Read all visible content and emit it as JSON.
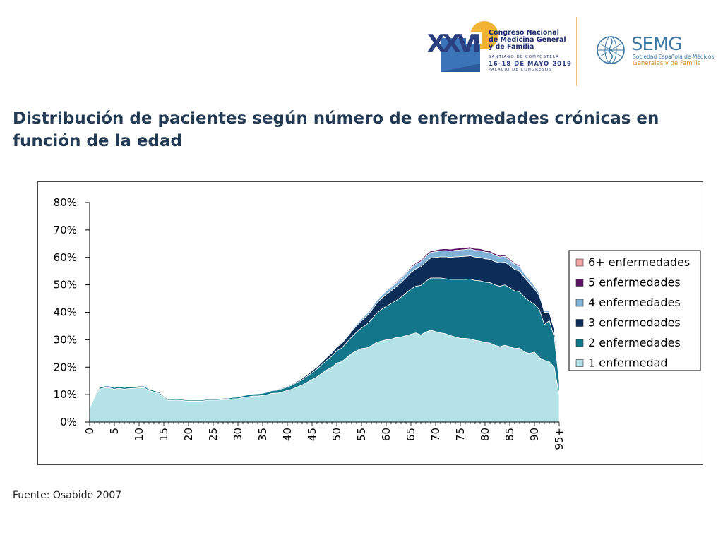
{
  "header": {
    "congress": {
      "numeral": "XXVI",
      "name": "Congreso Nacional\nde Medicina General\ny de Familia",
      "city": "SANTIAGO DE COMPOSTELA",
      "dates": "16-18 DE MAYO 2019",
      "venue": "PALACIO DE CONGRESOS",
      "colors": {
        "navy": "#2b3f80",
        "sun": "#f2b233",
        "blue": "#3b75b8"
      }
    },
    "semg": {
      "name": "SEMG",
      "tagline_1": "Sociedad Española de Médicos",
      "tagline_2": "Generales y de Familia",
      "icon": "semg-globe-icon"
    }
  },
  "title": "Distribución de pacientes según número de enfermedades crónicas en función de la edad",
  "source": "Fuente: Osabide 2007",
  "chart_data": {
    "type": "area",
    "stacked": true,
    "x": [
      0,
      1,
      2,
      3,
      4,
      5,
      6,
      7,
      8,
      9,
      10,
      11,
      12,
      13,
      14,
      15,
      16,
      17,
      18,
      19,
      20,
      21,
      22,
      23,
      24,
      25,
      26,
      27,
      28,
      29,
      30,
      31,
      32,
      33,
      34,
      35,
      36,
      37,
      38,
      39,
      40,
      41,
      42,
      43,
      44,
      45,
      46,
      47,
      48,
      49,
      50,
      51,
      52,
      53,
      54,
      55,
      56,
      57,
      58,
      59,
      60,
      61,
      62,
      63,
      64,
      65,
      66,
      67,
      68,
      69,
      70,
      71,
      72,
      73,
      74,
      75,
      76,
      77,
      78,
      79,
      80,
      81,
      82,
      83,
      84,
      85,
      86,
      87,
      88,
      89,
      90,
      91,
      92,
      93,
      94,
      95
    ],
    "x_ticks": [
      0,
      5,
      10,
      15,
      20,
      25,
      30,
      35,
      40,
      45,
      50,
      55,
      60,
      65,
      70,
      75,
      80,
      85,
      90,
      95
    ],
    "x_tick_labels": [
      "0",
      "5",
      "10",
      "15",
      "20",
      "25",
      "30",
      "35",
      "40",
      "45",
      "50",
      "55",
      "60",
      "65",
      "70",
      "75",
      "80",
      "85",
      "90",
      "95+"
    ],
    "ylim": [
      0,
      80
    ],
    "y_ticks": [
      0,
      10,
      20,
      30,
      40,
      50,
      60,
      70,
      80
    ],
    "y_tick_labels": [
      "0%",
      "10%",
      "20%",
      "30%",
      "40%",
      "50%",
      "60%",
      "70%",
      "80%"
    ],
    "grid": false,
    "legend_position": "right",
    "series": [
      {
        "name": "1 enfermedad",
        "color": "#b5e2e6",
        "values": [
          5.0,
          9.0,
          12.0,
          12.5,
          12.5,
          12.0,
          12.3,
          12.0,
          12.2,
          12.3,
          12.5,
          12.5,
          11.5,
          11.0,
          10.5,
          9.0,
          7.8,
          8.0,
          8.0,
          7.8,
          7.6,
          7.6,
          7.6,
          7.7,
          8.0,
          8.0,
          8.0,
          8.2,
          8.2,
          8.5,
          8.5,
          9.0,
          9.2,
          9.5,
          9.5,
          9.7,
          10.0,
          10.5,
          10.5,
          11.0,
          11.5,
          12.0,
          12.8,
          13.5,
          14.5,
          15.5,
          16.5,
          17.8,
          19.0,
          20.0,
          21.5,
          22.0,
          23.5,
          25.0,
          26.0,
          26.8,
          27.0,
          27.8,
          29.0,
          29.5,
          30.0,
          30.2,
          30.8,
          31.0,
          31.5,
          32.0,
          32.5,
          31.8,
          32.8,
          33.5,
          33.0,
          32.5,
          32.2,
          31.5,
          31.0,
          30.5,
          30.5,
          30.3,
          29.8,
          29.5,
          29.0,
          28.8,
          28.0,
          27.5,
          28.0,
          27.5,
          26.8,
          27.0,
          25.5,
          25.0,
          25.5,
          23.5,
          22.5,
          22.0,
          20.0,
          10.0
        ]
      },
      {
        "name": "2 enfermedades",
        "color": "#13768a",
        "values": [
          0.3,
          0.5,
          0.6,
          0.6,
          0.6,
          0.6,
          0.6,
          0.6,
          0.6,
          0.6,
          0.6,
          0.6,
          0.5,
          0.5,
          0.5,
          0.4,
          0.4,
          0.4,
          0.4,
          0.4,
          0.4,
          0.4,
          0.4,
          0.4,
          0.4,
          0.4,
          0.5,
          0.5,
          0.5,
          0.5,
          0.6,
          0.6,
          0.7,
          0.7,
          0.8,
          0.8,
          0.9,
          1.0,
          1.1,
          1.2,
          1.3,
          1.5,
          1.7,
          1.9,
          2.2,
          2.5,
          2.8,
          3.2,
          3.6,
          4.0,
          4.5,
          5.0,
          5.5,
          6.0,
          6.8,
          7.5,
          8.5,
          9.5,
          10.5,
          11.5,
          12.2,
          13.0,
          13.5,
          14.5,
          15.5,
          16.5,
          17.0,
          18.0,
          18.5,
          19.0,
          19.5,
          20.0,
          20.0,
          20.5,
          21.0,
          21.5,
          21.5,
          21.8,
          21.8,
          22.0,
          22.0,
          22.0,
          22.0,
          22.0,
          22.0,
          21.5,
          21.0,
          20.5,
          20.0,
          19.0,
          17.5,
          17.5,
          13.0,
          15.0,
          11.0,
          5.0
        ]
      },
      {
        "name": "3 enfermedades",
        "color": "#0c2d57",
        "values": [
          0.1,
          0.1,
          0.1,
          0.1,
          0.1,
          0.1,
          0.1,
          0.1,
          0.1,
          0.1,
          0.1,
          0.1,
          0.1,
          0.1,
          0.1,
          0.1,
          0.1,
          0.1,
          0.1,
          0.1,
          0.1,
          0.1,
          0.1,
          0.1,
          0.1,
          0.1,
          0.1,
          0.1,
          0.1,
          0.1,
          0.1,
          0.1,
          0.1,
          0.1,
          0.2,
          0.2,
          0.2,
          0.2,
          0.3,
          0.3,
          0.3,
          0.4,
          0.4,
          0.5,
          0.6,
          0.7,
          0.8,
          0.9,
          1.0,
          1.2,
          1.4,
          1.6,
          1.8,
          2.0,
          2.3,
          2.6,
          3.0,
          3.3,
          3.6,
          4.0,
          4.3,
          4.6,
          5.0,
          5.3,
          5.6,
          6.0,
          6.3,
          6.8,
          7.0,
          7.3,
          7.5,
          7.7,
          8.0,
          8.0,
          8.2,
          8.3,
          8.4,
          8.5,
          8.5,
          8.5,
          8.5,
          8.5,
          8.5,
          8.5,
          8.3,
          8.0,
          7.8,
          7.5,
          7.0,
          6.5,
          5.5,
          5.0,
          4.5,
          3.0,
          2.5,
          1.5
        ]
      },
      {
        "name": "4 enfermedades",
        "color": "#7fb2d6",
        "values": [
          0,
          0,
          0,
          0,
          0,
          0,
          0,
          0,
          0,
          0,
          0,
          0,
          0,
          0,
          0,
          0,
          0,
          0,
          0,
          0,
          0,
          0,
          0,
          0,
          0,
          0,
          0,
          0,
          0,
          0,
          0,
          0,
          0,
          0,
          0,
          0,
          0,
          0,
          0,
          0,
          0,
          0.1,
          0.1,
          0.1,
          0.1,
          0.1,
          0.2,
          0.2,
          0.2,
          0.3,
          0.3,
          0.4,
          0.4,
          0.5,
          0.6,
          0.7,
          0.8,
          0.9,
          1.0,
          1.1,
          1.2,
          1.3,
          1.4,
          1.5,
          1.6,
          1.7,
          1.8,
          1.9,
          2.0,
          2.0,
          2.1,
          2.2,
          2.3,
          2.3,
          2.4,
          2.4,
          2.5,
          2.5,
          2.5,
          2.5,
          2.5,
          2.4,
          2.3,
          2.2,
          2.1,
          2.0,
          1.9,
          1.7,
          1.5,
          1.3,
          1.1,
          0.9,
          0.7,
          0.6,
          0.5,
          0.2
        ]
      },
      {
        "name": "5 enfermedades",
        "color": "#5a1560",
        "values": [
          0,
          0,
          0,
          0,
          0,
          0,
          0,
          0,
          0,
          0,
          0,
          0,
          0,
          0,
          0,
          0,
          0,
          0,
          0,
          0,
          0,
          0,
          0,
          0,
          0,
          0,
          0,
          0,
          0,
          0,
          0,
          0,
          0,
          0,
          0,
          0,
          0,
          0,
          0,
          0,
          0,
          0,
          0,
          0,
          0,
          0,
          0,
          0,
          0,
          0.05,
          0.05,
          0.1,
          0.1,
          0.1,
          0.1,
          0.15,
          0.2,
          0.2,
          0.25,
          0.3,
          0.3,
          0.35,
          0.4,
          0.4,
          0.45,
          0.5,
          0.5,
          0.55,
          0.6,
          0.6,
          0.6,
          0.65,
          0.7,
          0.7,
          0.7,
          0.7,
          0.7,
          0.7,
          0.7,
          0.7,
          0.7,
          0.65,
          0.6,
          0.55,
          0.5,
          0.5,
          0.45,
          0.4,
          0.35,
          0.3,
          0.25,
          0.2,
          0.15,
          0.1,
          0.1,
          0.05
        ]
      },
      {
        "name": "6+ enfermedades",
        "color": "#f5a4a4",
        "values": [
          0,
          0,
          0,
          0,
          0,
          0,
          0,
          0,
          0,
          0,
          0,
          0,
          0,
          0,
          0,
          0,
          0,
          0,
          0,
          0,
          0,
          0,
          0,
          0,
          0,
          0,
          0,
          0,
          0,
          0,
          0,
          0,
          0,
          0,
          0,
          0,
          0,
          0,
          0,
          0,
          0,
          0,
          0,
          0,
          0,
          0,
          0,
          0,
          0,
          0,
          0,
          0,
          0,
          0,
          0.05,
          0.05,
          0.05,
          0.05,
          0.05,
          0.1,
          0.1,
          0.1,
          0.1,
          0.1,
          0.1,
          0.1,
          0.15,
          0.15,
          0.15,
          0.15,
          0.15,
          0.15,
          0.15,
          0.15,
          0.15,
          0.15,
          0.15,
          0.15,
          0.15,
          0.15,
          0.15,
          0.15,
          0.1,
          0.1,
          0.1,
          0.1,
          0.1,
          0.1,
          0.1,
          0.05,
          0.05,
          0.05,
          0.05,
          0.05,
          0.05,
          0
        ]
      }
    ],
    "legend_order": [
      "6+ enfermedades",
      "5 enfermedades",
      "4 enfermedades",
      "3 enfermedades",
      "2 enfermedades",
      "1 enfermedad"
    ]
  }
}
